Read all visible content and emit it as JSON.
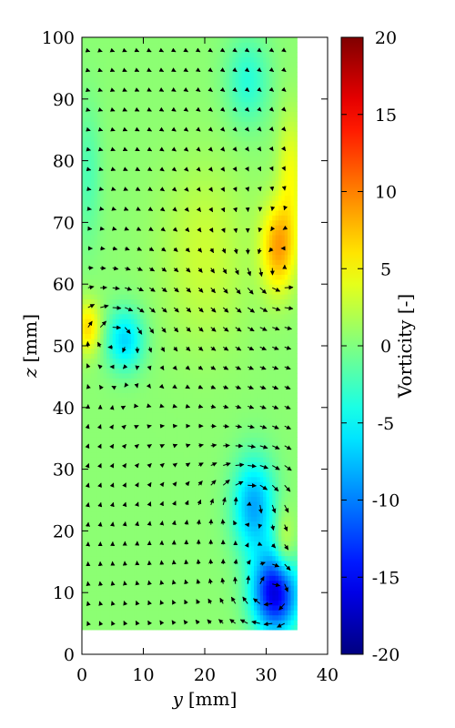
{
  "chart_data": {
    "type": "heatmap",
    "title": "",
    "xlabel_var": "y",
    "xlabel_unit": "[mm]",
    "ylabel_var": "z",
    "ylabel_unit": "[mm]",
    "xlim": [
      0,
      40
    ],
    "ylim": [
      0,
      100
    ],
    "x_ticks": [
      0,
      10,
      20,
      30,
      40
    ],
    "y_ticks": [
      0,
      10,
      20,
      30,
      40,
      50,
      60,
      70,
      80,
      90,
      100
    ],
    "data_extent": {
      "y_min": 0,
      "y_max": 35,
      "z_min": 4,
      "z_max": 100
    },
    "field": {
      "name": "Vorticity",
      "colormap": "jet",
      "background_value": 0.5,
      "features": [
        {
          "y": 31.5,
          "z": 10,
          "amplitude": -17,
          "sigma_y": 2.6,
          "sigma_z": 4.5
        },
        {
          "y": 28,
          "z": 24,
          "amplitude": -9,
          "sigma_y": 2.4,
          "sigma_z": 5.5
        },
        {
          "y": 7,
          "z": 51,
          "amplitude": -7,
          "sigma_y": 2.2,
          "sigma_z": 3.5
        },
        {
          "y": 1,
          "z": 53,
          "amplitude": 6,
          "sigma_y": 1.5,
          "sigma_z": 3.0
        },
        {
          "y": 32,
          "z": 66,
          "amplitude": 8,
          "sigma_y": 2.0,
          "sigma_z": 5.0
        },
        {
          "y": 34,
          "z": 78,
          "amplitude": 4,
          "sigma_y": 1.5,
          "sigma_z": 7.0
        },
        {
          "y": 27,
          "z": 93,
          "amplitude": -4,
          "sigma_y": 2.5,
          "sigma_z": 5.0
        },
        {
          "y": 1,
          "z": 78,
          "amplitude": -2.5,
          "sigma_y": 1.5,
          "sigma_z": 8.0
        },
        {
          "y": 20,
          "z": 65,
          "amplitude": 2.5,
          "sigma_y": 5.0,
          "sigma_z": 10.0
        },
        {
          "y": 33,
          "z": 17,
          "amplitude": 4,
          "sigma_y": 1.2,
          "sigma_z": 4.0
        }
      ]
    },
    "vector_field": {
      "grid_spacing_y": 2,
      "grid_spacing_z": 3.2,
      "vortices": [
        {
          "y": 31,
          "z": 10,
          "strength": -1.2
        },
        {
          "y": 27,
          "z": 25,
          "strength": -0.9
        },
        {
          "y": 5,
          "z": 52,
          "strength": -0.8
        },
        {
          "y": 32,
          "z": 62,
          "strength": 0.8
        }
      ],
      "mean_flow": [
        0.15,
        -0.15
      ]
    },
    "colorbar": {
      "label": "Vorticity [-]",
      "min": -20,
      "max": 20,
      "ticks": [
        -20,
        -15,
        -10,
        -5,
        0,
        5,
        10,
        15,
        20
      ]
    }
  }
}
